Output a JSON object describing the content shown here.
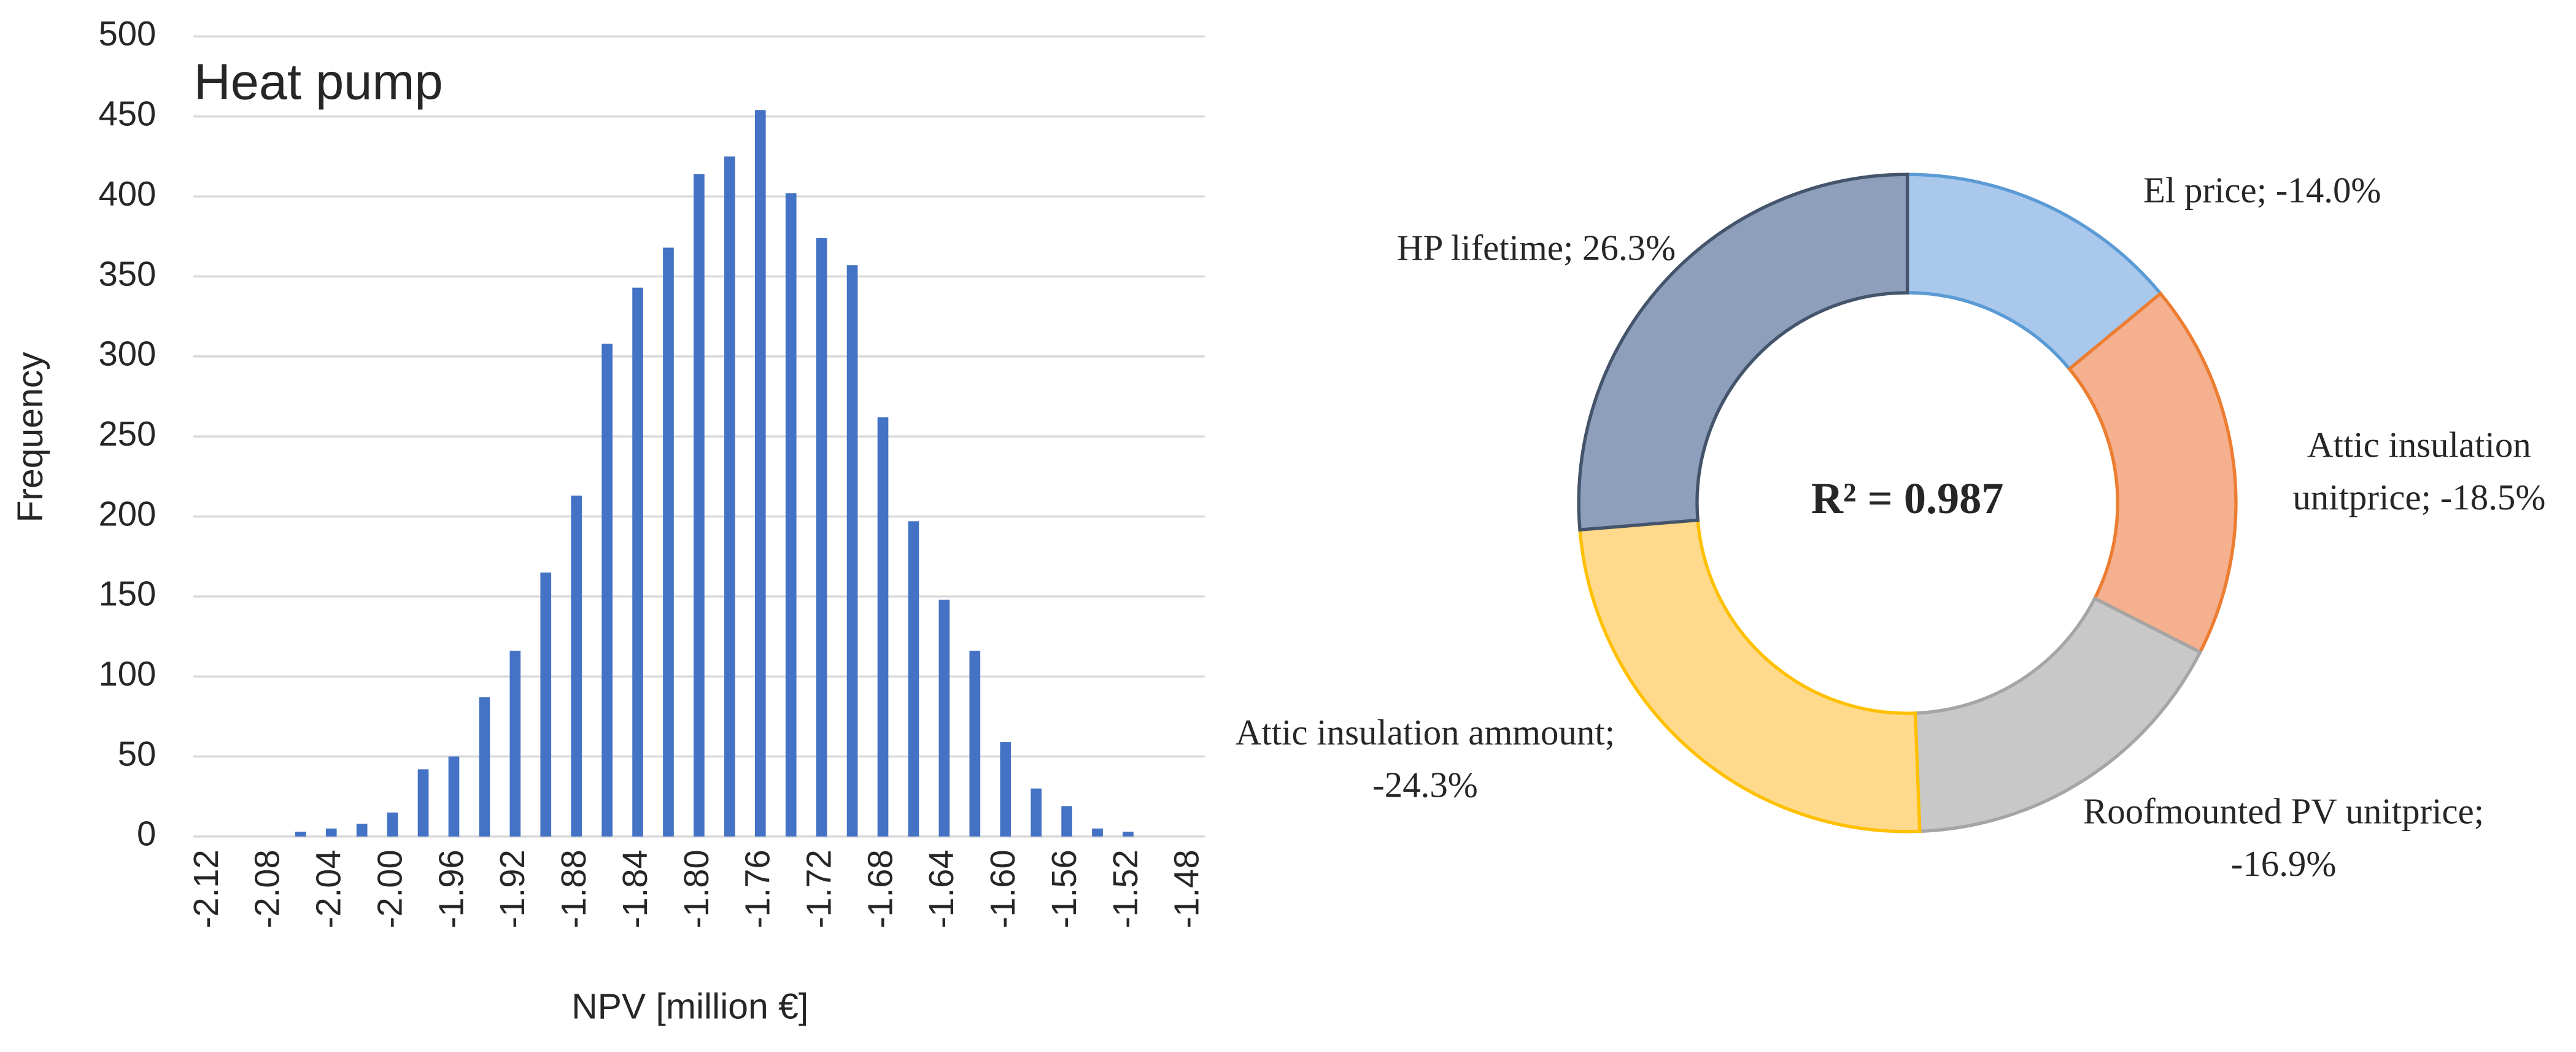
{
  "chart_data": [
    {
      "type": "bar",
      "annotation": "Heat pump",
      "ylabel": "Frequency",
      "xlabel": "NPV [million €]",
      "categories": [
        "-2.12",
        null,
        "-2.08",
        null,
        "-2.04",
        null,
        "-2.00",
        null,
        "-1.96",
        null,
        "-1.92",
        null,
        "-1.88",
        null,
        "-1.84",
        null,
        "-1.80",
        null,
        "-1.76",
        null,
        "-1.72",
        null,
        "-1.68",
        null,
        "-1.64",
        null,
        "-1.60",
        null,
        "-1.56",
        null,
        "-1.52",
        null,
        "-1.48"
      ],
      "values": [
        0,
        0,
        0,
        3,
        5,
        8,
        15,
        42,
        50,
        87,
        116,
        165,
        213,
        308,
        343,
        368,
        414,
        425,
        454,
        402,
        374,
        357,
        262,
        197,
        148,
        116,
        59,
        30,
        19,
        5,
        3,
        0,
        0
      ],
      "color": "#4472c4",
      "ylim": [
        0,
        500
      ],
      "yticks": [
        0,
        50,
        100,
        150,
        200,
        250,
        300,
        350,
        400,
        450,
        500
      ],
      "grid": true
    },
    {
      "type": "donut",
      "annotation": "R² = 0.987",
      "labels": [
        "El price; -14.0%",
        "Attic insulation unitprice; -18.5%",
        "Roofmounted PV unitprice; -16.9%",
        "Attic insulation ammount; -24.3%",
        "HP lifetime; 26.3%"
      ],
      "values": [
        -14.0,
        -18.5,
        -16.9,
        -24.3,
        26.3
      ],
      "colors": [
        "#a9c8ec",
        "#f4b08f",
        "#c8c8c8",
        "#ffd98c",
        "#8e9fbc"
      ],
      "edge_colors": [
        "#5b9bd5",
        "#ed7d31",
        "#a5a5a5",
        "#ffc000",
        "#44546a"
      ]
    }
  ]
}
